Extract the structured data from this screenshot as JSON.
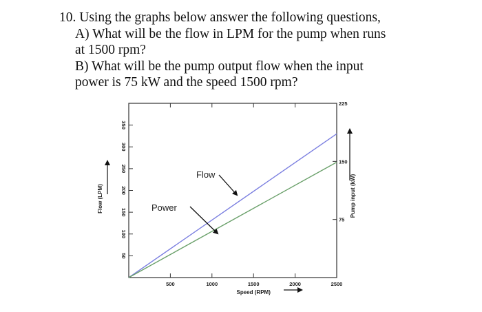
{
  "question": {
    "lines": [
      "10. Using the graphs below answer the following questions,",
      "A) What will be the flow in LPM for the pump when runs",
      "at 1500 rpm?",
      "B) What will be the pump output flow when the input",
      "power is 75 kW and the speed 1500 rpm?"
    ]
  },
  "chart_data": {
    "type": "line",
    "title": "",
    "xlabel": "Speed (RPM)",
    "ylabel": "Flow (LPM)",
    "y2label": "Pump input (kW)",
    "xlim": [
      0,
      2500
    ],
    "ylim": [
      0,
      400
    ],
    "y2lim": [
      0,
      225
    ],
    "xticks": [
      500,
      1000,
      1500,
      2000,
      2500
    ],
    "xtick_labels": [
      "500",
      "1000",
      "1500",
      "2000",
      "2500"
    ],
    "yticks": [
      50,
      100,
      150,
      200,
      250,
      300,
      350
    ],
    "ytick_labels": [
      "50",
      "100",
      "150",
      "200",
      "250",
      "300",
      "350"
    ],
    "y2ticks": [
      75,
      150,
      225
    ],
    "y2tick_labels": [
      "75",
      "150",
      "225"
    ],
    "series": [
      {
        "name": "Flow",
        "axis": "left",
        "color": "#7b7fe0",
        "x": [
          0,
          2500
        ],
        "y": [
          0,
          330
        ]
      },
      {
        "name": "Power",
        "axis": "right",
        "color": "#6aa06a",
        "x": [
          0,
          2500
        ],
        "y": [
          0,
          149
        ]
      }
    ],
    "annotations": [
      {
        "text": "Flow",
        "points_to": "Flow"
      },
      {
        "text": "Power",
        "points_to": "Power"
      }
    ],
    "grid": false,
    "legend": "none"
  }
}
